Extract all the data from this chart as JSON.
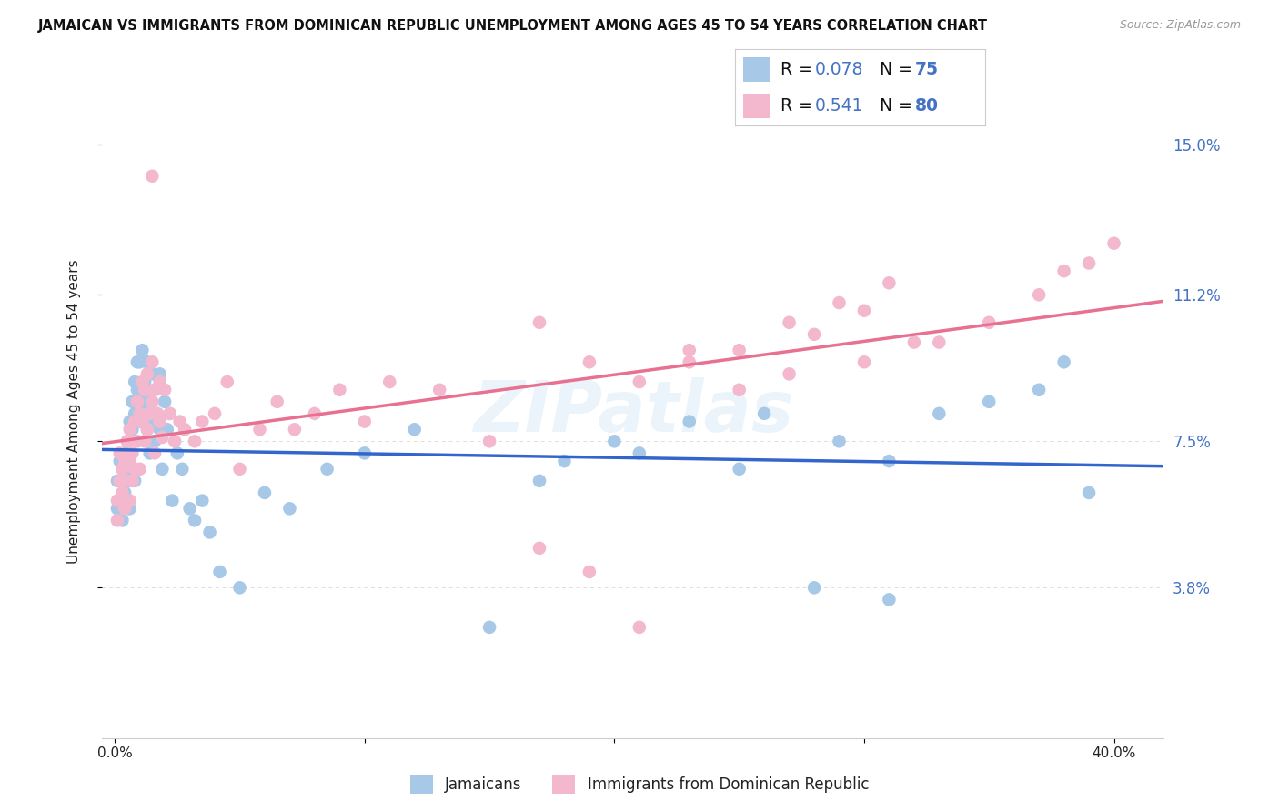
{
  "title": "JAMAICAN VS IMMIGRANTS FROM DOMINICAN REPUBLIC UNEMPLOYMENT AMONG AGES 45 TO 54 YEARS CORRELATION CHART",
  "source": "Source: ZipAtlas.com",
  "ylabel": "Unemployment Among Ages 45 to 54 years",
  "ytick_labels": [
    "3.8%",
    "7.5%",
    "11.2%",
    "15.0%"
  ],
  "ytick_vals": [
    0.038,
    0.075,
    0.112,
    0.15
  ],
  "xtick_labels": [
    "0.0%",
    "",
    "",
    "",
    "40.0%"
  ],
  "xtick_vals": [
    0.0,
    0.1,
    0.2,
    0.3,
    0.4
  ],
  "ylim": [
    0.0,
    0.165
  ],
  "xlim": [
    -0.005,
    0.42
  ],
  "blue_scatter_color": "#a8c8e8",
  "pink_scatter_color": "#f4b8ce",
  "blue_line_color": "#3366cc",
  "pink_line_color": "#e87090",
  "axis_label_color": "#4472C4",
  "text_color": "#222222",
  "grid_color": "#dddddd",
  "R_blue": "0.078",
  "N_blue": "75",
  "R_pink": "0.541",
  "N_pink": "80",
  "legend_label_blue": "Jamaicans",
  "legend_label_pink": "Immigrants from Dominican Republic",
  "watermark": "ZIPatlas",
  "blue_x": [
    0.001,
    0.001,
    0.002,
    0.002,
    0.003,
    0.003,
    0.004,
    0.004,
    0.004,
    0.005,
    0.005,
    0.005,
    0.006,
    0.006,
    0.006,
    0.006,
    0.007,
    0.007,
    0.008,
    0.008,
    0.008,
    0.009,
    0.009,
    0.01,
    0.01,
    0.011,
    0.011,
    0.012,
    0.012,
    0.013,
    0.013,
    0.014,
    0.014,
    0.015,
    0.015,
    0.016,
    0.016,
    0.017,
    0.018,
    0.018,
    0.019,
    0.02,
    0.021,
    0.022,
    0.023,
    0.025,
    0.027,
    0.03,
    0.032,
    0.035,
    0.038,
    0.042,
    0.05,
    0.06,
    0.07,
    0.085,
    0.1,
    0.12,
    0.15,
    0.17,
    0.2,
    0.23,
    0.26,
    0.29,
    0.31,
    0.33,
    0.35,
    0.37,
    0.39,
    0.25,
    0.28,
    0.31,
    0.18,
    0.21,
    0.38
  ],
  "blue_y": [
    0.065,
    0.058,
    0.07,
    0.06,
    0.055,
    0.068,
    0.062,
    0.072,
    0.065,
    0.075,
    0.068,
    0.058,
    0.08,
    0.072,
    0.065,
    0.058,
    0.085,
    0.078,
    0.09,
    0.082,
    0.065,
    0.095,
    0.088,
    0.095,
    0.08,
    0.098,
    0.085,
    0.09,
    0.082,
    0.095,
    0.078,
    0.085,
    0.072,
    0.092,
    0.08,
    0.088,
    0.075,
    0.082,
    0.092,
    0.078,
    0.068,
    0.085,
    0.078,
    0.082,
    0.06,
    0.072,
    0.068,
    0.058,
    0.055,
    0.06,
    0.052,
    0.042,
    0.038,
    0.062,
    0.058,
    0.068,
    0.072,
    0.078,
    0.028,
    0.065,
    0.075,
    0.08,
    0.082,
    0.075,
    0.07,
    0.082,
    0.085,
    0.088,
    0.062,
    0.068,
    0.038,
    0.035,
    0.07,
    0.072,
    0.095
  ],
  "pink_x": [
    0.001,
    0.001,
    0.002,
    0.002,
    0.003,
    0.003,
    0.004,
    0.004,
    0.005,
    0.005,
    0.006,
    0.006,
    0.006,
    0.007,
    0.007,
    0.008,
    0.008,
    0.009,
    0.009,
    0.01,
    0.01,
    0.011,
    0.011,
    0.012,
    0.012,
    0.013,
    0.013,
    0.014,
    0.015,
    0.015,
    0.016,
    0.016,
    0.017,
    0.018,
    0.018,
    0.019,
    0.02,
    0.022,
    0.024,
    0.026,
    0.028,
    0.032,
    0.035,
    0.04,
    0.045,
    0.05,
    0.058,
    0.065,
    0.072,
    0.08,
    0.09,
    0.1,
    0.11,
    0.13,
    0.15,
    0.17,
    0.19,
    0.21,
    0.23,
    0.25,
    0.27,
    0.29,
    0.31,
    0.33,
    0.35,
    0.37,
    0.38,
    0.39,
    0.4,
    0.25,
    0.27,
    0.3,
    0.32,
    0.17,
    0.19,
    0.21,
    0.23,
    0.28,
    0.3,
    0.015
  ],
  "pink_y": [
    0.06,
    0.055,
    0.065,
    0.072,
    0.068,
    0.062,
    0.07,
    0.058,
    0.075,
    0.065,
    0.078,
    0.06,
    0.07,
    0.072,
    0.065,
    0.08,
    0.068,
    0.085,
    0.075,
    0.082,
    0.068,
    0.09,
    0.08,
    0.088,
    0.075,
    0.092,
    0.078,
    0.082,
    0.095,
    0.085,
    0.088,
    0.072,
    0.082,
    0.09,
    0.08,
    0.076,
    0.088,
    0.082,
    0.075,
    0.08,
    0.078,
    0.075,
    0.08,
    0.082,
    0.09,
    0.068,
    0.078,
    0.085,
    0.078,
    0.082,
    0.088,
    0.08,
    0.09,
    0.088,
    0.075,
    0.048,
    0.042,
    0.028,
    0.095,
    0.098,
    0.105,
    0.11,
    0.115,
    0.1,
    0.105,
    0.112,
    0.118,
    0.12,
    0.125,
    0.088,
    0.092,
    0.095,
    0.1,
    0.105,
    0.095,
    0.09,
    0.098,
    0.102,
    0.108,
    0.142
  ]
}
